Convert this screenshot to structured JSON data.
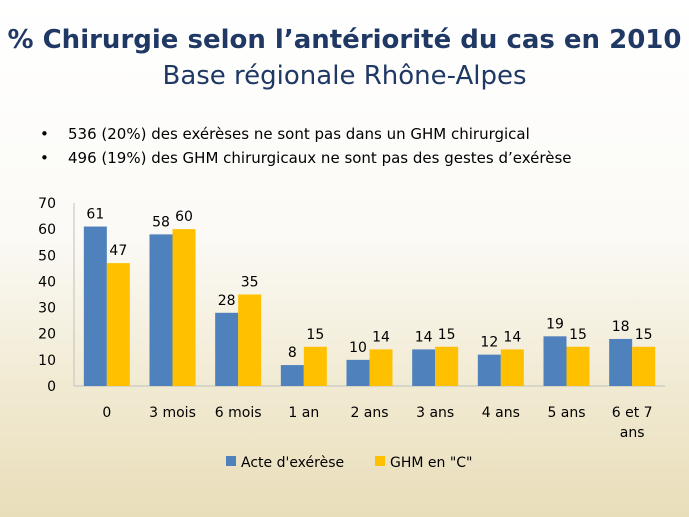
{
  "slide": {
    "title": "% Chirurgie selon l’antériorité du cas en 2010",
    "subtitle": "Base régionale Rhône-Alpes",
    "bullets": [
      "536 (20%) des exérèses ne sont pas dans un GHM chirurgical",
      "496 (19%) des GHM chirurgicaux ne sont pas des gestes d’exérèse"
    ]
  },
  "chart_data": {
    "type": "bar",
    "categories": [
      "0",
      "3 mois",
      "6 mois",
      "1 an",
      "2 ans",
      "3 ans",
      "4 ans",
      "5 ans",
      [
        "6 et 7",
        "ans"
      ]
    ],
    "series": [
      {
        "name": "Acte d'exérèse",
        "color": "#4f81bd",
        "values": [
          61,
          58,
          28,
          8,
          10,
          14,
          12,
          19,
          18
        ]
      },
      {
        "name": "GHM en \"C\"",
        "color": "#ffc000",
        "values": [
          47,
          60,
          35,
          15,
          14,
          15,
          14,
          15,
          15
        ]
      }
    ],
    "ylim": [
      0,
      70
    ],
    "yticks": [
      0,
      10,
      20,
      30,
      40,
      50,
      60,
      70
    ],
    "grid": false,
    "data_labels": true,
    "legend": "bottom"
  }
}
